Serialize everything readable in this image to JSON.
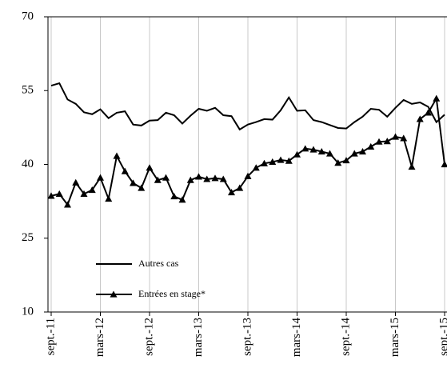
{
  "chart_data": {
    "type": "line",
    "categories": [
      "sept.-11",
      null,
      null,
      null,
      null,
      null,
      "mars-12",
      null,
      null,
      null,
      null,
      null,
      "sept.-12",
      null,
      null,
      null,
      null,
      null,
      "mars-13",
      null,
      null,
      null,
      null,
      null,
      "sept.-13",
      null,
      null,
      null,
      null,
      null,
      "mars-14",
      null,
      null,
      null,
      null,
      null,
      "sept.-14",
      null,
      null,
      null,
      null,
      null,
      "mars-15",
      null,
      null,
      null,
      null,
      null,
      "sept.-15"
    ],
    "series": [
      {
        "name": "Autres cas",
        "color": "#000000",
        "marker": "none",
        "values": [
          56,
          56.5,
          53.2,
          52.3,
          50.6,
          50.2,
          51.2,
          49.4,
          50.5,
          50.8,
          48.1,
          47.9,
          48.9,
          49,
          50.5,
          50,
          48.3,
          49.9,
          51.3,
          50.9,
          51.5,
          50,
          49.8,
          47.1,
          48.1,
          48.6,
          49.2,
          49.1,
          51,
          53.6,
          50.9,
          51,
          49,
          48.6,
          48,
          47.4,
          47.3,
          48.6,
          49.7,
          51.3,
          51.1,
          49.7,
          51.5,
          53.1,
          52.3,
          52.6,
          51.7,
          48.6,
          50.1
        ]
      },
      {
        "name": "Entrées en stage*",
        "color": "#000000",
        "marker": "triangle",
        "values": [
          33.6,
          34,
          31.8,
          36.3,
          34,
          34.8,
          37.3,
          33,
          41.7,
          38.6,
          36.2,
          35.2,
          39.3,
          36.8,
          37.3,
          33.5,
          32.8,
          36.8,
          37.5,
          37,
          37.2,
          37,
          34.3,
          35.2,
          37.6,
          39.3,
          40.2,
          40.5,
          40.9,
          40.7,
          42,
          43.2,
          43,
          42.6,
          42.2,
          40.3,
          40.8,
          42.2,
          42.6,
          43.6,
          44.6,
          44.7,
          45.6,
          45.3,
          39.5,
          49.2,
          50.5,
          53.4,
          40
        ]
      }
    ],
    "ylim": [
      10,
      70
    ],
    "yticks": [
      10,
      25,
      40,
      55,
      70
    ],
    "grid": true
  }
}
